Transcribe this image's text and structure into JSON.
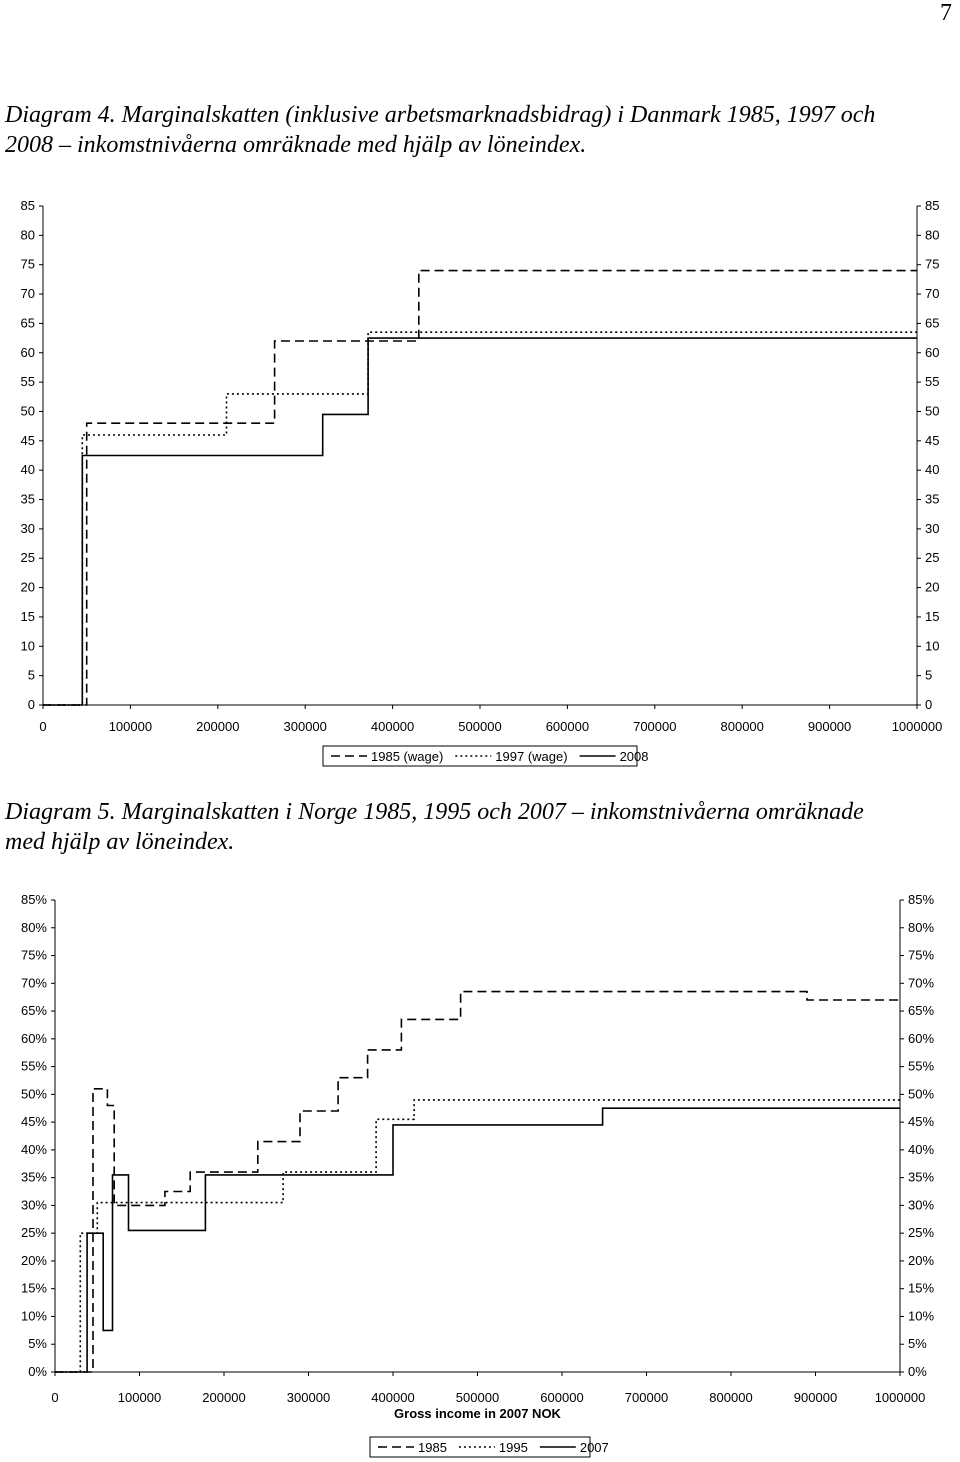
{
  "page_number": "7",
  "diagram4": {
    "caption_line1": "Diagram 4. Marginalskatten  (inklusive arbetsmarknadsbidrag) i Danmark 1985, 1997 och",
    "caption_line2": "2008 – inkomstnivåerna omräknade med hjälp av löneindex."
  },
  "diagram5": {
    "caption_line1": "Diagram 5. Marginalskatten  i Norge 1985, 1995 och 2007 – inkomstnivåerna omräknade",
    "caption_line2": "med hjälp av löneindex."
  },
  "chart_data": [
    {
      "type": "line",
      "title": "",
      "xlabel": "",
      "ylabel": "",
      "xlim": [
        0,
        1000000
      ],
      "ylim": [
        0,
        85
      ],
      "x_ticks": [
        0,
        100000,
        200000,
        300000,
        400000,
        500000,
        600000,
        700000,
        800000,
        900000,
        1000000
      ],
      "y_ticks": [
        0,
        5,
        10,
        15,
        20,
        25,
        30,
        35,
        40,
        45,
        50,
        55,
        60,
        65,
        70,
        75,
        80,
        85
      ],
      "y_tick_labels": [
        "0",
        "5",
        "10",
        "15",
        "20",
        "25",
        "30",
        "35",
        "40",
        "45",
        "50",
        "55",
        "60",
        "65",
        "70",
        "75",
        "80",
        "85"
      ],
      "secondary_y_axis": true,
      "grid": false,
      "legend_position": "bottom",
      "series": [
        {
          "name": "1985 (wage)",
          "style": "dashed",
          "color": "#000000",
          "x": [
            0,
            50000,
            50000,
            265000,
            265000,
            430000,
            430000,
            1000000
          ],
          "y": [
            0,
            0,
            48,
            48,
            62,
            62,
            74,
            74
          ]
        },
        {
          "name": "1997 (wage)",
          "style": "dotted",
          "color": "#000000",
          "x": [
            0,
            45000,
            45000,
            210000,
            210000,
            372000,
            372000,
            1000000
          ],
          "y": [
            0,
            0,
            46,
            46,
            53,
            53,
            63.5,
            63.5
          ]
        },
        {
          "name": "2008",
          "style": "solid",
          "color": "#000000",
          "x": [
            0,
            45000,
            45000,
            320000,
            320000,
            372000,
            372000,
            1000000
          ],
          "y": [
            0,
            0,
            42.5,
            42.5,
            49.5,
            49.5,
            62.5,
            62.5
          ]
        }
      ]
    },
    {
      "type": "line",
      "title": "",
      "xlabel": "Gross income in 2007 NOK",
      "ylabel": "",
      "xlim": [
        0,
        1000000
      ],
      "ylim": [
        0,
        85
      ],
      "x_ticks": [
        0,
        100000,
        200000,
        300000,
        400000,
        500000,
        600000,
        700000,
        800000,
        900000,
        1000000
      ],
      "y_ticks": [
        0,
        5,
        10,
        15,
        20,
        25,
        30,
        35,
        40,
        45,
        50,
        55,
        60,
        65,
        70,
        75,
        80,
        85
      ],
      "y_tick_labels": [
        "0%",
        "5%",
        "10%",
        "15%",
        "20%",
        "25%",
        "30%",
        "35%",
        "40%",
        "45%",
        "50%",
        "55%",
        "60%",
        "65%",
        "70%",
        "75%",
        "80%",
        "85%"
      ],
      "secondary_y_axis": true,
      "grid": false,
      "legend_position": "bottom",
      "series": [
        {
          "name": "1985",
          "style": "dashed",
          "color": "#000000",
          "x": [
            0,
            45000,
            45000,
            62000,
            62000,
            70000,
            70000,
            130000,
            130000,
            160000,
            160000,
            240000,
            240000,
            290000,
            290000,
            335000,
            335000,
            370000,
            370000,
            410000,
            410000,
            480000,
            480000,
            580000,
            580000,
            890000,
            890000,
            1000000
          ],
          "y": [
            0,
            0,
            51,
            51,
            48,
            48,
            30,
            30,
            32.5,
            32.5,
            36,
            36,
            41.5,
            41.5,
            47,
            47,
            53,
            53,
            58,
            58,
            63.5,
            63.5,
            68.5,
            68.5,
            68.5,
            68.5,
            67,
            67
          ]
        },
        {
          "name": "1995",
          "style": "dotted",
          "color": "#000000",
          "x": [
            0,
            30000,
            30000,
            50000,
            50000,
            250000,
            250000,
            270000,
            270000,
            380000,
            380000,
            425000,
            425000,
            1000000
          ],
          "y": [
            0,
            0,
            25,
            25,
            30.5,
            30.5,
            30.5,
            30.5,
            36,
            36,
            45.5,
            45.5,
            49,
            49
          ]
        },
        {
          "name": "2007",
          "style": "solid",
          "color": "#000000",
          "x": [
            0,
            38000,
            38000,
            57000,
            57000,
            68000,
            68000,
            87000,
            87000,
            178000,
            178000,
            400000,
            400000,
            648000,
            648000,
            1000000
          ],
          "y": [
            0,
            0,
            25,
            25,
            7.5,
            7.5,
            35.5,
            35.5,
            25.5,
            25.5,
            35.5,
            35.5,
            44.5,
            44.5,
            47.5,
            47.5
          ]
        }
      ]
    }
  ]
}
